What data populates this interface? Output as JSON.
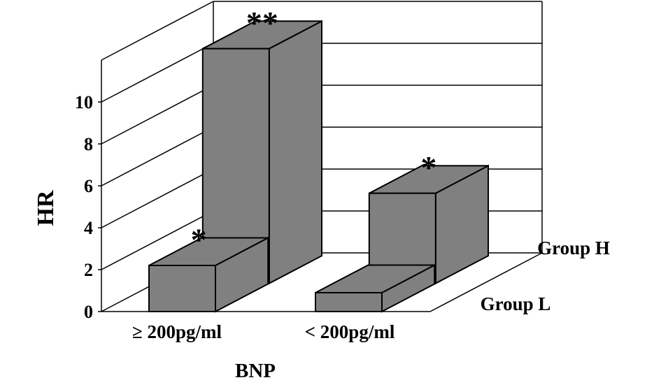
{
  "chart_data": {
    "type": "bar",
    "subtype": "3d-grouped-bar",
    "title": "",
    "xlabel": "BNP",
    "ylabel": "HR",
    "categories": [
      "≥ 200pg/ml",
      "< 200pg/ml"
    ],
    "series": [
      {
        "name": "Group L",
        "values": [
          2.2,
          0.9
        ],
        "annotations": [
          "*",
          ""
        ]
      },
      {
        "name": "Group H",
        "values": [
          11.2,
          4.3
        ],
        "annotations": [
          "**",
          "*"
        ]
      }
    ],
    "yticks": [
      0,
      2,
      4,
      6,
      8,
      10
    ],
    "ylim": [
      0,
      12
    ],
    "grid": true,
    "legend": "depth-axis-right",
    "colors": {
      "bar": "#808080",
      "line": "#000000",
      "background": "#ffffff"
    }
  }
}
